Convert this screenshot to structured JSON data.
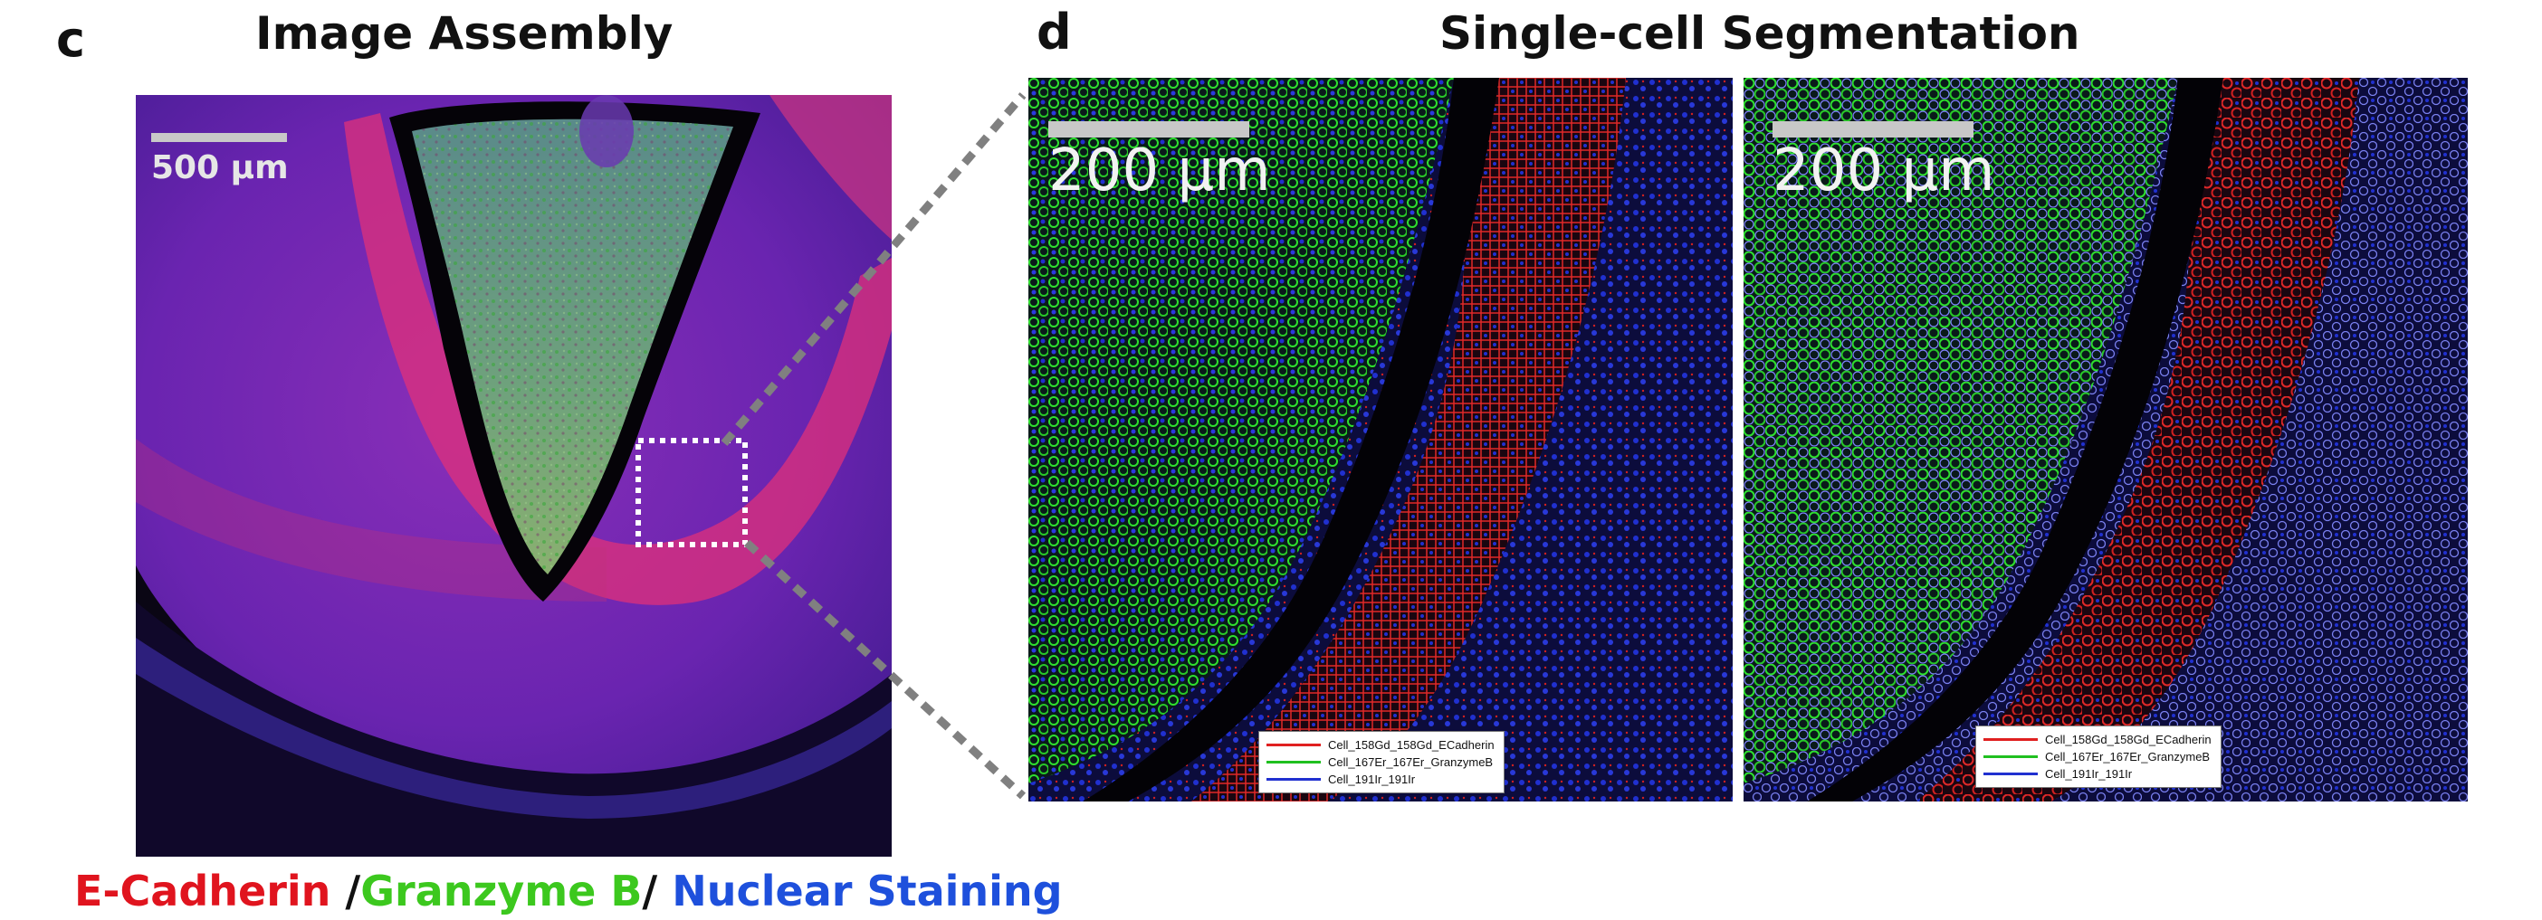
{
  "panel_c": {
    "letter": "c",
    "title": "Image Assembly",
    "scale_label": "500 µm"
  },
  "panel_d": {
    "letter": "d",
    "title": "Single-cell Segmentation",
    "left": {
      "scale_label": "200 µm",
      "legend": [
        {
          "label": "Cell_158Gd_158Gd_ECadherin",
          "color": "#e02020"
        },
        {
          "label": "Cell_167Er_167Er_GranzymeB",
          "color": "#20c020"
        },
        {
          "label": "Cell_191Ir_191Ir",
          "color": "#2030d0"
        }
      ]
    },
    "right": {
      "scale_label": "200 µm",
      "legend": [
        {
          "label": "Cell_158Gd_158Gd_ECadherin",
          "color": "#e02020"
        },
        {
          "label": "Cell_167Er_167Er_GranzymeB",
          "color": "#20c020"
        },
        {
          "label": "Cell_191Ir_191Ir",
          "color": "#2030d0"
        }
      ]
    }
  },
  "caption": {
    "ecadherin": "E-Cadherin",
    "sep1": " /",
    "granzyme": "Granzyme B",
    "sep2": "/ ",
    "nuclear": "Nuclear Staining",
    "colors": {
      "ecadherin": "#e0141e",
      "granzyme": "#3cc81e",
      "nuclear": "#1e50dc"
    }
  },
  "colors": {
    "ecadherin": "#e02020",
    "granzyme": "#20c020",
    "nuclear": "#2030d0",
    "zoom_lines": "#808080"
  }
}
